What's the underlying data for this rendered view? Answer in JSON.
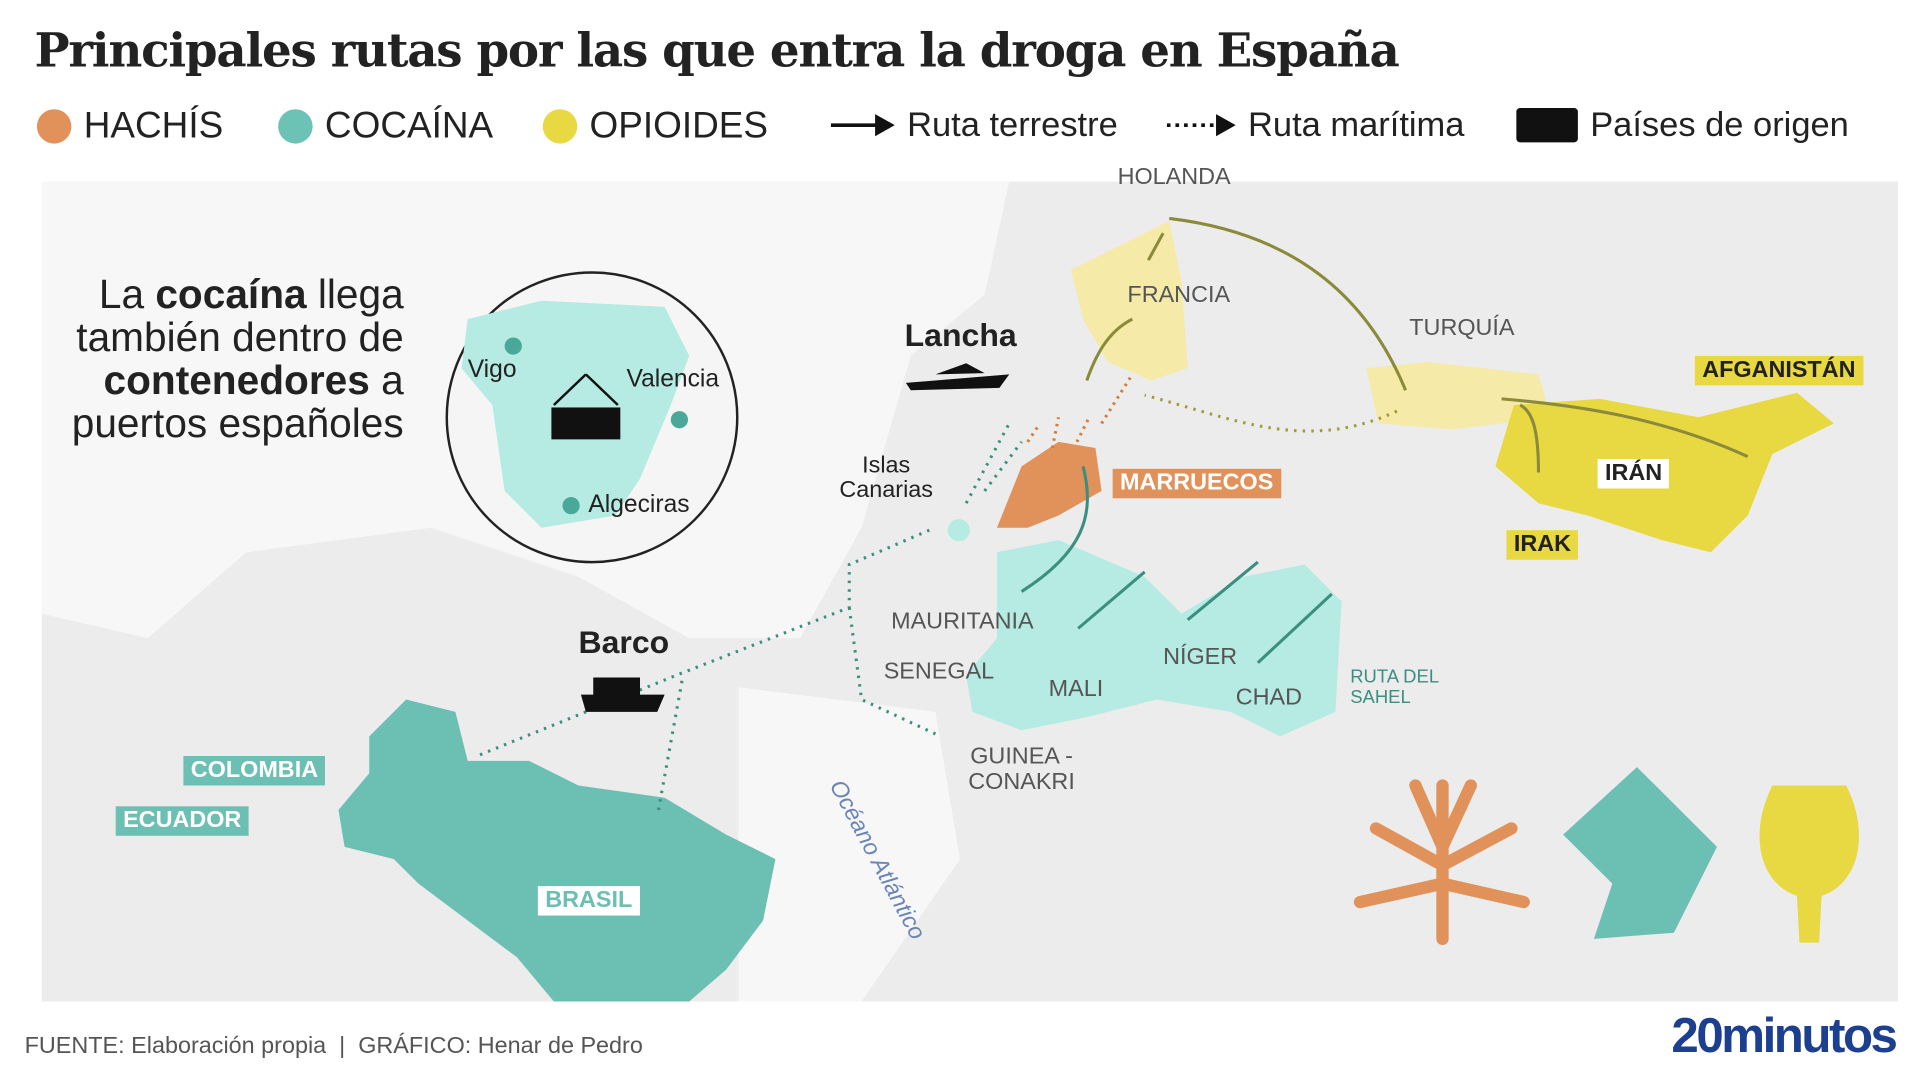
{
  "title": "Principales rutas por las que entra la droga en España",
  "legend": [
    {
      "label": "HACHÍS",
      "color": "#e0925a"
    },
    {
      "label": "COCAÍNA",
      "color": "#6cc2b4"
    },
    {
      "label": "OPIOIDES",
      "color": "#e8d842"
    },
    {
      "label": "Ruta terrestre",
      "icon": "solid-arrow-icon"
    },
    {
      "label": "Ruta marítima",
      "icon": "dotted-arrow-icon"
    },
    {
      "label": "Países de origen",
      "icon": "black-box-icon"
    }
  ],
  "intro": {
    "p1": "La ",
    "b1": "cocaína",
    "p2": " llega también dentro de ",
    "b2": "contenedores",
    "p3": " a puertos españoles"
  },
  "ports": [
    "Vigo",
    "Valencia",
    "Algeciras"
  ],
  "vehicles": {
    "boat": "Lancha",
    "ship": "Barco"
  },
  "places": {
    "holanda": "HOLANDA",
    "francia": "FRANCIA",
    "turquia": "TURQUÍA",
    "canarias": "Islas\nCanarias",
    "mauritania": "MAURITANIA",
    "senegal": "SENEGAL",
    "mali": "MALI",
    "niger": "NÍGER",
    "chad": "CHAD",
    "sahel": "RUTA DEL SAHEL",
    "guinea": "GUINEA -CONAKRI",
    "ocean": "Océano Atlántico"
  },
  "origins": {
    "marruecos": "MARRUECOS",
    "afganistan": "AFGANISTÁN",
    "iran": "IRÁN",
    "irak": "IRAK",
    "colombia": "COLOMBIA",
    "ecuador": "ECUADOR",
    "brasil": "BRASIL"
  },
  "footer": "FUENTE: Elaboración propia  |  GRÁFICO: Henar de Pedro",
  "logo": "20minutos"
}
